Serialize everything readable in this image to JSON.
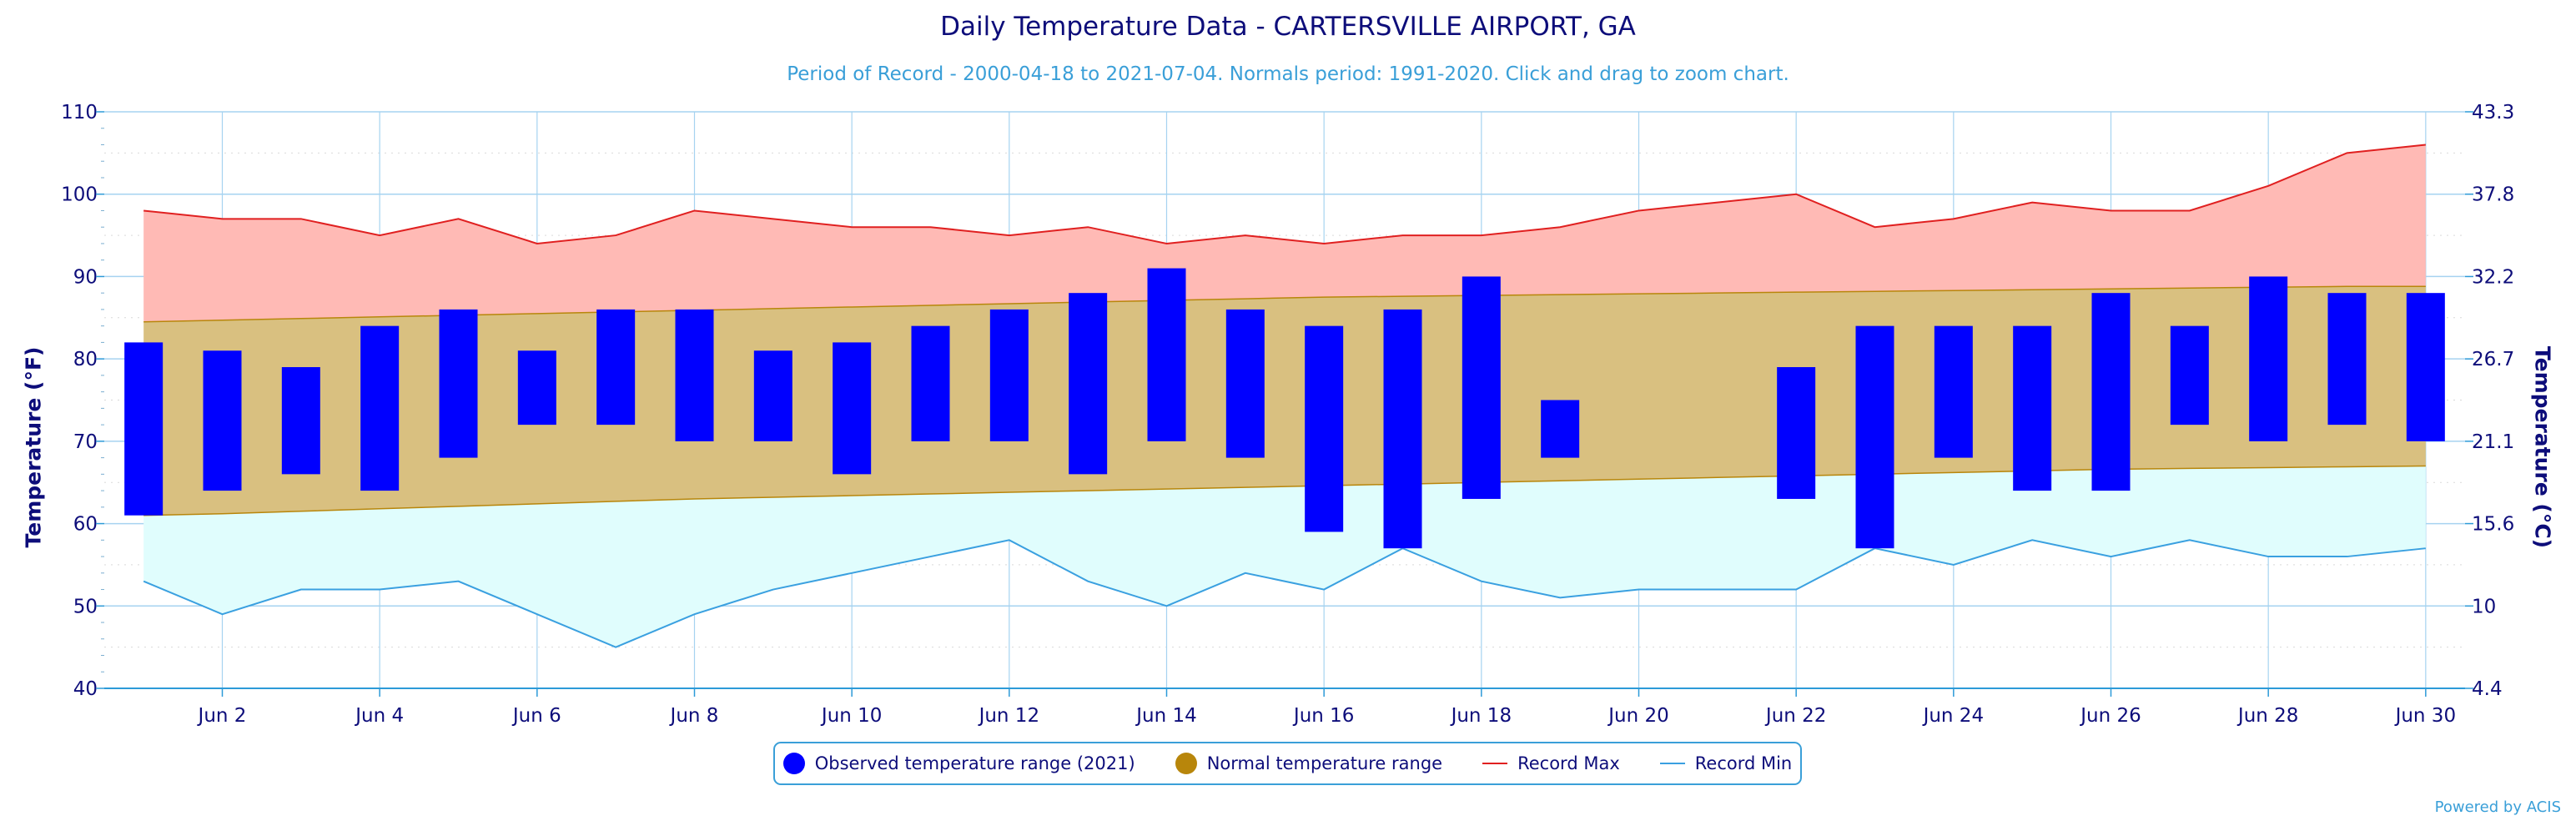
{
  "title": "Daily Temperature Data - CARTERSVILLE AIRPORT, GA",
  "subtitle": "Period of Record - 2000-04-18 to 2021-07-04. Normals period: 1991-2020. Click and drag to zoom chart.",
  "credits": "Powered by ACIS",
  "legend": {
    "observed": "Observed temperature range (2021)",
    "normal": "Normal temperature range",
    "record_max": "Record Max",
    "record_min": "Record Min"
  },
  "colors": {
    "observed": "#0000ff",
    "normal_fill": "#d9c080",
    "normal_line": "#b8860b",
    "record_max_line": "#e02020",
    "record_max_fill": "#ffbab5",
    "record_min_line": "#3aa0e0",
    "record_min_fill": "#e0fdfd",
    "axis_text": "#0d0d7a",
    "grid": "#a6d3f0"
  },
  "chart_data": {
    "type": "bar",
    "xlabel": "",
    "ylabel": "Temperature (°F)",
    "ylabel_right": "Temperature (°C)",
    "x_unit": "day of June 2021",
    "x": [
      1,
      2,
      3,
      4,
      5,
      6,
      7,
      8,
      9,
      10,
      11,
      12,
      13,
      14,
      15,
      16,
      17,
      18,
      19,
      20,
      21,
      22,
      23,
      24,
      25,
      26,
      27,
      28,
      29,
      30
    ],
    "x_tick_labels": [
      "Jun 2",
      "Jun 4",
      "Jun 6",
      "Jun 8",
      "Jun 10",
      "Jun 12",
      "Jun 14",
      "Jun 16",
      "Jun 18",
      "Jun 20",
      "Jun 22",
      "Jun 24",
      "Jun 26",
      "Jun 28",
      "Jun 30"
    ],
    "ylim": [
      40,
      110
    ],
    "y_ticks": [
      40,
      50,
      60,
      70,
      80,
      90,
      100,
      110
    ],
    "y_right_ticks": [
      "4.4",
      "10",
      "15.6",
      "21.1",
      "26.7",
      "32.2",
      "37.8",
      "43.3"
    ],
    "series": [
      {
        "name": "Observed temperature range (2021)",
        "kind": "range_bar",
        "high": [
          82,
          81,
          79,
          84,
          86,
          81,
          86,
          86,
          81,
          82,
          84,
          86,
          88,
          91,
          86,
          84,
          86,
          90,
          75,
          null,
          null,
          79,
          84,
          84,
          84,
          88,
          84,
          90,
          88,
          88
        ],
        "low": [
          61,
          64,
          66,
          64,
          68,
          72,
          72,
          70,
          70,
          66,
          70,
          70,
          66,
          70,
          68,
          59,
          57,
          63,
          68,
          null,
          null,
          63,
          57,
          68,
          64,
          64,
          72,
          70,
          72,
          70
        ]
      },
      {
        "name": "Normal temperature range",
        "kind": "range_area",
        "high": [
          84.5,
          84.7,
          84.9,
          85.1,
          85.3,
          85.5,
          85.7,
          85.9,
          86.1,
          86.3,
          86.5,
          86.7,
          86.9,
          87.1,
          87.3,
          87.5,
          87.6,
          87.7,
          87.8,
          87.9,
          88.0,
          88.1,
          88.2,
          88.3,
          88.4,
          88.5,
          88.6,
          88.7,
          88.8,
          88.8
        ],
        "low": [
          61.0,
          61.2,
          61.5,
          61.8,
          62.1,
          62.4,
          62.7,
          63.0,
          63.2,
          63.4,
          63.6,
          63.8,
          64.0,
          64.2,
          64.4,
          64.6,
          64.8,
          65.0,
          65.2,
          65.4,
          65.6,
          65.8,
          66.0,
          66.2,
          66.4,
          66.6,
          66.7,
          66.8,
          66.9,
          67.0
        ]
      },
      {
        "name": "Record Max",
        "kind": "line",
        "values": [
          98,
          97,
          97,
          95,
          97,
          94,
          95,
          98,
          97,
          96,
          96,
          95,
          96,
          94,
          95,
          94,
          95,
          95,
          96,
          98,
          99,
          100,
          96,
          97,
          99,
          98,
          98,
          101,
          105,
          106
        ]
      },
      {
        "name": "Record Min",
        "kind": "line",
        "values": [
          53,
          49,
          52,
          52,
          53,
          49,
          45,
          49,
          52,
          54,
          56,
          58,
          53,
          50,
          54,
          52,
          57,
          53,
          51,
          52,
          52,
          52,
          57,
          55,
          58,
          56,
          58,
          56,
          56,
          57
        ]
      }
    ]
  }
}
